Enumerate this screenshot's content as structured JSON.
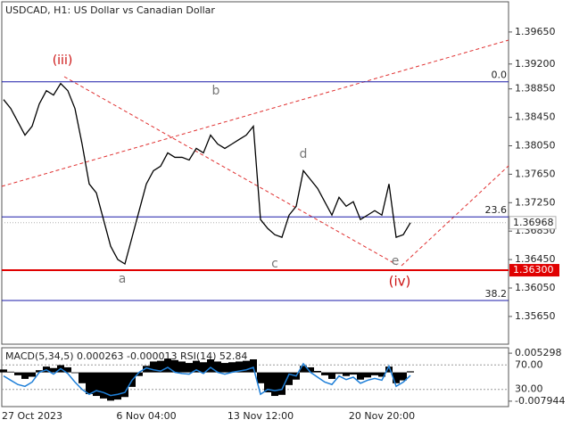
{
  "chart_data": [
    {
      "type": "line",
      "title": "USDCAD, H1:  US Dollar vs Canadian Dollar",
      "color": "#000000",
      "categories": [
        null,
        null,
        null,
        null,
        "27 Oct 2023",
        null,
        null,
        null,
        null,
        null,
        null,
        null,
        null,
        null,
        null,
        null,
        null,
        null,
        null,
        null,
        "6 Nov 04:00",
        null,
        null,
        null,
        null,
        null,
        null,
        null,
        null,
        null,
        null,
        null,
        null,
        null,
        null,
        null,
        "13 Nov 12:00",
        null,
        null,
        null,
        null,
        null,
        null,
        null,
        null,
        null,
        null,
        null,
        null,
        null,
        null,
        null,
        null,
        "20 Nov 20:00",
        null,
        null,
        null,
        null
      ],
      "values": [
        1.387,
        1.38575,
        1.38388,
        1.382,
        1.38325,
        1.38638,
        1.38825,
        1.38763,
        1.38925,
        1.38825,
        1.38575,
        1.38075,
        1.37513,
        1.37388,
        1.37013,
        1.36638,
        1.3645,
        1.36388,
        1.36763,
        1.37138,
        1.37513,
        1.377,
        1.37763,
        1.3795,
        1.37888,
        1.37888,
        1.3785,
        1.38013,
        1.3795,
        1.382,
        1.38075,
        1.38013,
        1.38075,
        1.38138,
        1.382,
        1.38325,
        1.37013,
        1.36888,
        1.368,
        1.36763,
        1.37075,
        1.372,
        1.377,
        1.37575,
        1.3745,
        1.37263,
        1.37075,
        1.37325,
        1.372,
        1.37263,
        1.37013,
        1.37075,
        1.37138,
        1.37075,
        1.37513,
        1.36763,
        1.368,
        1.36968
      ],
      "ylim": [
        1.3526,
        1.40075
      ],
      "yticks": [
        {
          "value": 1.3965,
          "label": "1.39650"
        },
        {
          "value": 1.392,
          "label": "1.39200"
        },
        {
          "value": 1.3885,
          "label": "1.38850"
        },
        {
          "value": 1.3845,
          "label": "1.38450"
        },
        {
          "value": 1.3805,
          "label": "1.38050"
        },
        {
          "value": 1.3765,
          "label": "1.37650"
        },
        {
          "value": 1.3725,
          "label": "1.37250"
        },
        {
          "value": 1.3685,
          "label": "1.36850"
        },
        {
          "value": 1.3645,
          "label": "1.36450"
        },
        {
          "value": 1.3605,
          "label": "1.36050"
        },
        {
          "value": 1.3565,
          "label": "1.35650"
        }
      ],
      "levels": [
        {
          "value": 1.3895,
          "label": "0.0",
          "color": "#1a1aa8"
        },
        {
          "value": 1.3705,
          "label": "23.6",
          "color": "#1a1aa8"
        },
        {
          "value": 1.35875,
          "label": "38.2",
          "color": "#1a1aa8"
        }
      ],
      "support": {
        "value": 1.363,
        "label": "1.36300",
        "color": "#e00000"
      },
      "current": {
        "value": 1.36968,
        "label": "1.36968",
        "color": "#b0b0b0"
      },
      "annotations": [
        {
          "text": "(iii)",
          "color": "#cc1111"
        },
        {
          "text": "b",
          "color": "#777777"
        },
        {
          "text": "d",
          "color": "#777777"
        },
        {
          "text": "a",
          "color": "#777777"
        },
        {
          "text": "c",
          "color": "#777777"
        },
        {
          "text": "e",
          "color": "#777777"
        },
        {
          "text": "(iv)",
          "color": "#cc1111"
        }
      ]
    },
    {
      "type": "combo",
      "title": "MACD(5,34,5) 0.000263 -0.000013 RSI(14) 52.84",
      "series": [
        {
          "type": "bar",
          "color": "#000000",
          "values": [
            0.0008,
            0.0002,
            -0.0008,
            -0.0018,
            -0.0012,
            0.0006,
            0.0016,
            0.0012,
            0.002,
            0.0014,
            -0.0002,
            -0.003,
            -0.006,
            -0.0065,
            -0.0072,
            -0.0078,
            -0.0075,
            -0.0068,
            -0.004,
            -0.001,
            0.0018,
            0.003,
            0.0032,
            0.0038,
            0.0034,
            0.003,
            0.0026,
            0.0032,
            0.0028,
            0.0036,
            0.003,
            0.0026,
            0.0028,
            0.003,
            0.0032,
            0.0036,
            -0.003,
            -0.0055,
            -0.0065,
            -0.0062,
            -0.0035,
            -0.002,
            0.0018,
            0.0014,
            0.0004,
            -0.0008,
            -0.0018,
            -0.0004,
            -0.001,
            -0.0006,
            -0.002,
            -0.0014,
            -0.0008,
            -0.0012,
            0.0016,
            -0.003,
            -0.0022,
            0.0003
          ]
        },
        {
          "type": "line",
          "color": "#1e7fd8",
          "axis": "y2",
          "values": [
            52,
            45,
            38,
            35,
            42,
            58,
            62,
            55,
            64,
            56,
            42,
            30,
            22,
            28,
            25,
            20,
            22,
            25,
            45,
            58,
            65,
            62,
            60,
            66,
            58,
            56,
            55,
            62,
            56,
            66,
            58,
            55,
            58,
            60,
            62,
            66,
            22,
            30,
            28,
            30,
            55,
            52,
            72,
            58,
            50,
            42,
            38,
            52,
            46,
            50,
            40,
            45,
            48,
            45,
            68,
            35,
            42,
            52.84
          ]
        }
      ],
      "ylim": [
        -0.009443,
        0.006797
      ],
      "yticks": [
        0.005298,
        -0.007944
      ],
      "y2lim": [
        1.9,
        98.1
      ],
      "y2ticks": [
        {
          "value": 70,
          "label": "70.00"
        },
        {
          "value": 30,
          "label": "30.00"
        }
      ]
    }
  ]
}
